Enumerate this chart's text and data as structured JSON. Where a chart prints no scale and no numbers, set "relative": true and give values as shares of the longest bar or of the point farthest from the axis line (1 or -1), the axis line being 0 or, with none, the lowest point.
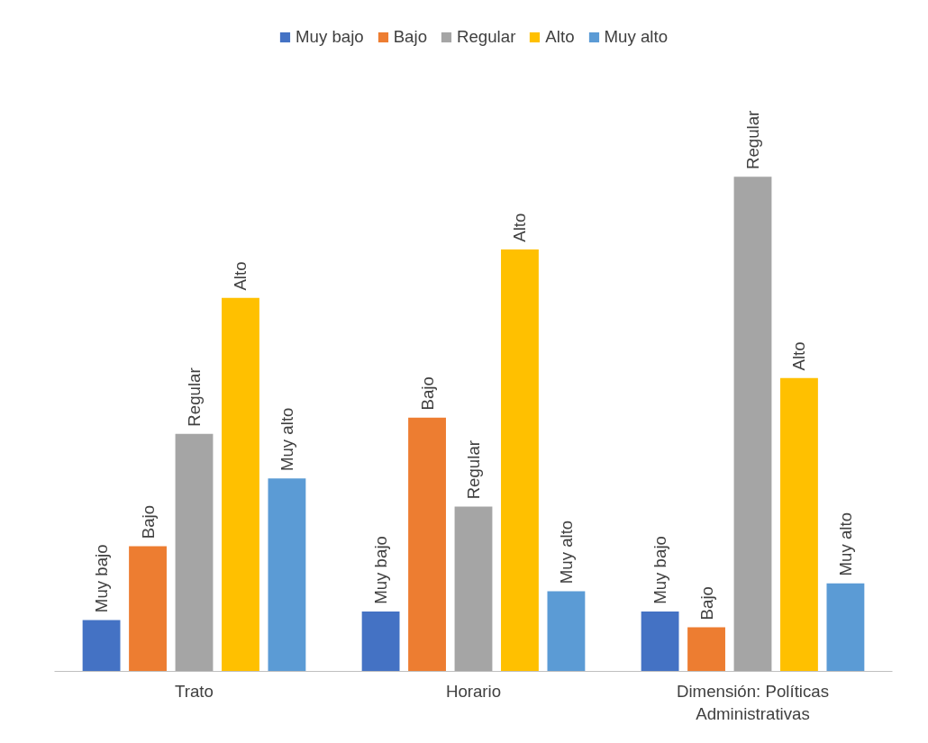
{
  "chart_data": {
    "type": "bar",
    "relative": true,
    "categories": [
      "Trato",
      "Horario",
      "Dimensión: Políticas Administrativas"
    ],
    "series": [
      {
        "name": "Muy bajo",
        "color": "#4472c4",
        "values": [
          0.104,
          0.121,
          0.121
        ]
      },
      {
        "name": "Bajo",
        "color": "#ed7d31",
        "values": [
          0.253,
          0.513,
          0.089
        ]
      },
      {
        "name": "Regular",
        "color": "#a5a5a5",
        "values": [
          0.48,
          0.333,
          1
        ]
      },
      {
        "name": "Alto",
        "color": "#ffc000",
        "values": [
          0.755,
          0.853,
          0.593
        ]
      },
      {
        "name": "Muy alto",
        "color": "#5b9bd5",
        "values": [
          0.39,
          0.162,
          0.178
        ]
      }
    ],
    "legend": "top",
    "grid": false
  }
}
